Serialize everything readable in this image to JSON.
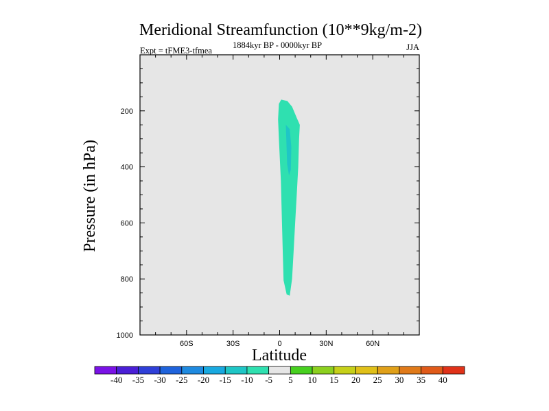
{
  "chart_data": {
    "type": "contour",
    "title": "Meridional Streamfunction (10**9kg/m-2)",
    "subtitle_left": "Expt = tFME3-tfmea",
    "subtitle_center": "1884kyr BP - 0000kyr BP",
    "subtitle_right": "JJA",
    "xlabel": "Latitude",
    "ylabel": "Pressure (in hPa)",
    "xlim": [
      -90,
      90
    ],
    "ylim": [
      1000,
      0
    ],
    "x_ticks": [
      -60,
      -30,
      0,
      30,
      60
    ],
    "x_tick_labels": [
      "60S",
      "30S",
      "0",
      "30N",
      "60N"
    ],
    "y_ticks": [
      200,
      400,
      600,
      800,
      1000
    ],
    "y_tick_labels": [
      "200",
      "400",
      "600",
      "800",
      "1000"
    ],
    "background_color": "#e6e6e6",
    "filled_regions": [
      {
        "level_range": [
          -10,
          -5
        ],
        "color": "#2fe0b0",
        "outline": [
          [
            1,
            160
          ],
          [
            5,
            165
          ],
          [
            8,
            185
          ],
          [
            11,
            225
          ],
          [
            13,
            250
          ],
          [
            12.5,
            300
          ],
          [
            12,
            400
          ],
          [
            11,
            500
          ],
          [
            10,
            600
          ],
          [
            9,
            700
          ],
          [
            8,
            800
          ],
          [
            6.5,
            860
          ],
          [
            4.5,
            855
          ],
          [
            2.5,
            805
          ],
          [
            2,
            700
          ],
          [
            1.5,
            600
          ],
          [
            0.8,
            450
          ],
          [
            -0.5,
            300
          ],
          [
            -1,
            230
          ],
          [
            -0.5,
            175
          ],
          [
            1,
            160
          ]
        ]
      },
      {
        "level_range": [
          -15,
          -10
        ],
        "color": "#1fc6c6",
        "outline": [
          [
            4,
            250
          ],
          [
            6.5,
            265
          ],
          [
            7.5,
            330
          ],
          [
            7.2,
            410
          ],
          [
            6,
            430
          ],
          [
            4.8,
            390
          ],
          [
            4.3,
            300
          ],
          [
            4,
            250
          ]
        ]
      }
    ],
    "colorbar": {
      "labels": [
        "-40",
        "-35",
        "-30",
        "-25",
        "-20",
        "-15",
        "-10",
        "-5",
        "5",
        "10",
        "15",
        "20",
        "25",
        "30",
        "35",
        "40"
      ],
      "colors": [
        "#7a12e6",
        "#4a1fd6",
        "#2f3fd8",
        "#1f63dc",
        "#1f8ae0",
        "#19a9e0",
        "#1fc6c6",
        "#2fe0b0",
        "#e6e6e6",
        "#47d01f",
        "#8cd01f",
        "#c6d019",
        "#e0c019",
        "#e0a019",
        "#e07a19",
        "#e05a19",
        "#e03219"
      ]
    }
  }
}
